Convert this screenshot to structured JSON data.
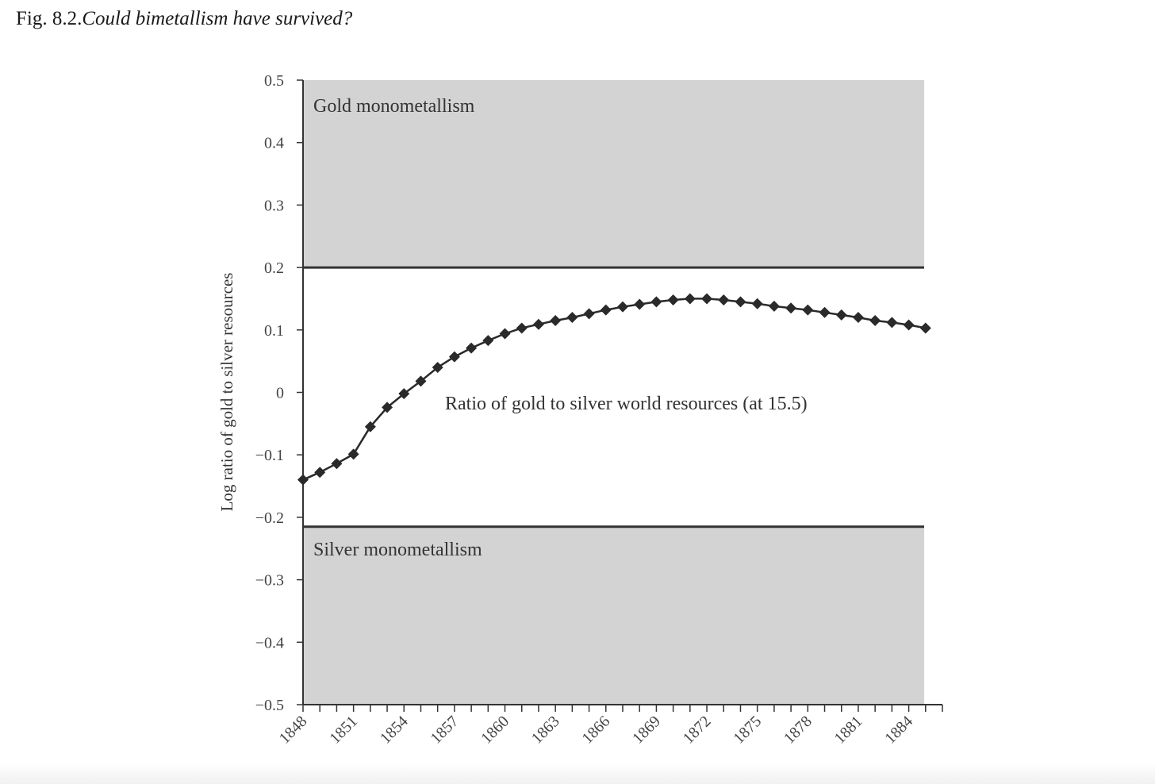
{
  "caption": {
    "number": "Fig. 8.2.",
    "title": "Could bimetallism have survived?"
  },
  "chart_data": {
    "type": "line",
    "title": "",
    "xlabel": "",
    "ylabel": "Log ratio of gold to silver resources",
    "xlim": [
      1848,
      1886
    ],
    "ylim": [
      -0.5,
      0.5
    ],
    "x_ticks": [
      1848,
      1851,
      1854,
      1857,
      1860,
      1863,
      1866,
      1869,
      1872,
      1875,
      1878,
      1881,
      1884
    ],
    "y_ticks": [
      {
        "value": 0.5,
        "label": "0.5"
      },
      {
        "value": 0.4,
        "label": "0.4"
      },
      {
        "value": 0.3,
        "label": "0.3"
      },
      {
        "value": 0.2,
        "label": "0.2"
      },
      {
        "value": 0.1,
        "label": "0.1"
      },
      {
        "value": 0,
        "label": "0"
      },
      {
        "value": -0.1,
        "label": "−0.1"
      },
      {
        "value": -0.2,
        "label": "−0.2"
      },
      {
        "value": -0.3,
        "label": "−0.3"
      },
      {
        "value": -0.4,
        "label": "−0.4"
      },
      {
        "value": -0.5,
        "label": "−0.5"
      }
    ],
    "regions": [
      {
        "label": "Gold monometallism",
        "y_from": 0.2,
        "y_to": 0.5,
        "color": "#d3d3d3"
      },
      {
        "label": "Silver monometallism",
        "y_from": -0.5,
        "y_to": -0.215,
        "color": "#d3d3d3"
      }
    ],
    "thresholds": [
      0.2,
      -0.215
    ],
    "annotation": "Ratio of gold to silver world resources (at 15.5)",
    "series": [
      {
        "name": "",
        "color": "#2a2a2a",
        "marker": "diamond",
        "x": [
          1848,
          1849,
          1850,
          1851,
          1852,
          1853,
          1854,
          1855,
          1856,
          1857,
          1858,
          1859,
          1860,
          1861,
          1862,
          1863,
          1864,
          1865,
          1866,
          1867,
          1868,
          1869,
          1870,
          1871,
          1872,
          1873,
          1874,
          1875,
          1876,
          1877,
          1878,
          1879,
          1880,
          1881,
          1882,
          1883,
          1884,
          1885
        ],
        "y": [
          -0.14,
          -0.128,
          -0.114,
          -0.099,
          -0.055,
          -0.024,
          -0.002,
          0.018,
          0.04,
          0.057,
          0.071,
          0.083,
          0.094,
          0.103,
          0.109,
          0.115,
          0.12,
          0.126,
          0.132,
          0.137,
          0.141,
          0.145,
          0.148,
          0.15,
          0.15,
          0.148,
          0.145,
          0.142,
          0.138,
          0.135,
          0.132,
          0.128,
          0.124,
          0.12,
          0.115,
          0.112,
          0.108,
          0.103
        ]
      }
    ],
    "colors": {
      "region": "#d3d3d3",
      "axis": "#333333",
      "line": "#2a2a2a"
    }
  }
}
